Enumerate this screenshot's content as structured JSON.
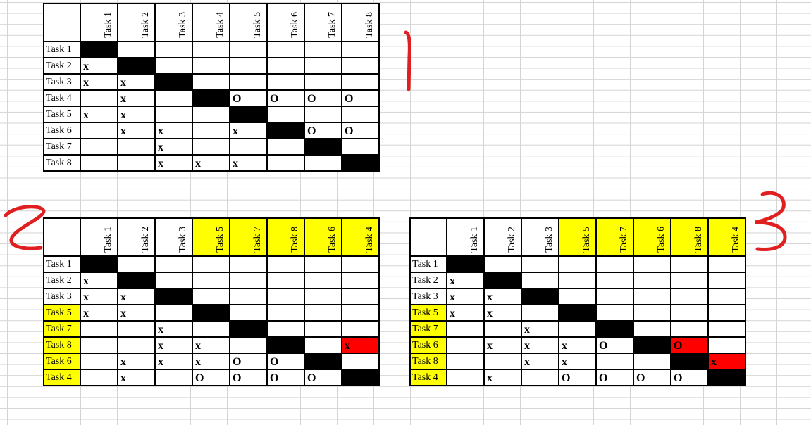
{
  "matrices": [
    {
      "label": "1",
      "columns": [
        "Task 1",
        "Task 2",
        "Task 3",
        "Task 4",
        "Task 5",
        "Task 6",
        "Task 7",
        "Task 8"
      ],
      "rows": [
        "Task 1",
        "Task 2",
        "Task 3",
        "Task 4",
        "Task 5",
        "Task 6",
        "Task 7",
        "Task 8"
      ],
      "highlighted": [],
      "cells": [
        [
          "B",
          "",
          "",
          "",
          "",
          "",
          "",
          ""
        ],
        [
          "x",
          "B",
          "",
          "",
          "",
          "",
          "",
          ""
        ],
        [
          "x",
          "x",
          "B",
          "",
          "",
          "",
          "",
          ""
        ],
        [
          "",
          "x",
          "",
          "B",
          "O",
          "O",
          "O",
          "O"
        ],
        [
          "x",
          "x",
          "",
          "",
          "B",
          "",
          "",
          ""
        ],
        [
          "",
          "x",
          "x",
          "",
          "x",
          "B",
          "O",
          "O"
        ],
        [
          "",
          "",
          "x",
          "",
          "",
          "",
          "B",
          ""
        ],
        [
          "",
          "",
          "x",
          "x",
          "x",
          "",
          "",
          "B"
        ]
      ],
      "red_cells": []
    },
    {
      "label": "2",
      "columns": [
        "Task 1",
        "Task 2",
        "Task 3",
        "Task 5",
        "Task 7",
        "Task 8",
        "Task 6",
        "Task 4"
      ],
      "rows": [
        "Task 1",
        "Task 2",
        "Task 3",
        "Task 5",
        "Task 7",
        "Task 8",
        "Task 6",
        "Task 4"
      ],
      "highlighted": [
        "Task 5",
        "Task 7",
        "Task 8",
        "Task 6",
        "Task 4"
      ],
      "cells": [
        [
          "B",
          "",
          "",
          "",
          "",
          "",
          "",
          ""
        ],
        [
          "x",
          "B",
          "",
          "",
          "",
          "",
          "",
          ""
        ],
        [
          "x",
          "x",
          "B",
          "",
          "",
          "",
          "",
          ""
        ],
        [
          "x",
          "x",
          "",
          "B",
          "",
          "",
          "",
          ""
        ],
        [
          "",
          "",
          "x",
          "",
          "B",
          "",
          "",
          ""
        ],
        [
          "",
          "",
          "x",
          "x",
          "",
          "B",
          "",
          "x"
        ],
        [
          "",
          "x",
          "x",
          "x",
          "O",
          "O",
          "B",
          ""
        ],
        [
          "",
          "x",
          "",
          "O",
          "O",
          "O",
          "O",
          "B"
        ]
      ],
      "red_cells": [
        [
          5,
          7
        ]
      ]
    },
    {
      "label": "3",
      "columns": [
        "Task 1",
        "Task 2",
        "Task 3",
        "Task 5",
        "Task 7",
        "Task 6",
        "Task 8",
        "Task 4"
      ],
      "rows": [
        "Task 1",
        "Task 2",
        "Task 3",
        "Task 5",
        "Task 7",
        "Task 6",
        "Task 8",
        "Task 4"
      ],
      "highlighted": [
        "Task 5",
        "Task 7",
        "Task 6",
        "Task 8",
        "Task 4"
      ],
      "cells": [
        [
          "B",
          "",
          "",
          "",
          "",
          "",
          "",
          ""
        ],
        [
          "x",
          "B",
          "",
          "",
          "",
          "",
          "",
          ""
        ],
        [
          "x",
          "x",
          "B",
          "",
          "",
          "",
          "",
          ""
        ],
        [
          "x",
          "x",
          "",
          "B",
          "",
          "",
          "",
          ""
        ],
        [
          "",
          "",
          "x",
          "",
          "B",
          "",
          "",
          ""
        ],
        [
          "",
          "x",
          "x",
          "x",
          "O",
          "B",
          "O",
          ""
        ],
        [
          "",
          "",
          "x",
          "x",
          "",
          "",
          "B",
          "x"
        ],
        [
          "",
          "x",
          "",
          "O",
          "O",
          "O",
          "O",
          "B"
        ]
      ],
      "red_cells": [
        [
          5,
          6
        ],
        [
          6,
          7
        ]
      ]
    }
  ],
  "colors": {
    "highlight": "#ffff00",
    "conflict": "#ff0000",
    "diagonal": "#000000",
    "annotation": "#e02020"
  }
}
